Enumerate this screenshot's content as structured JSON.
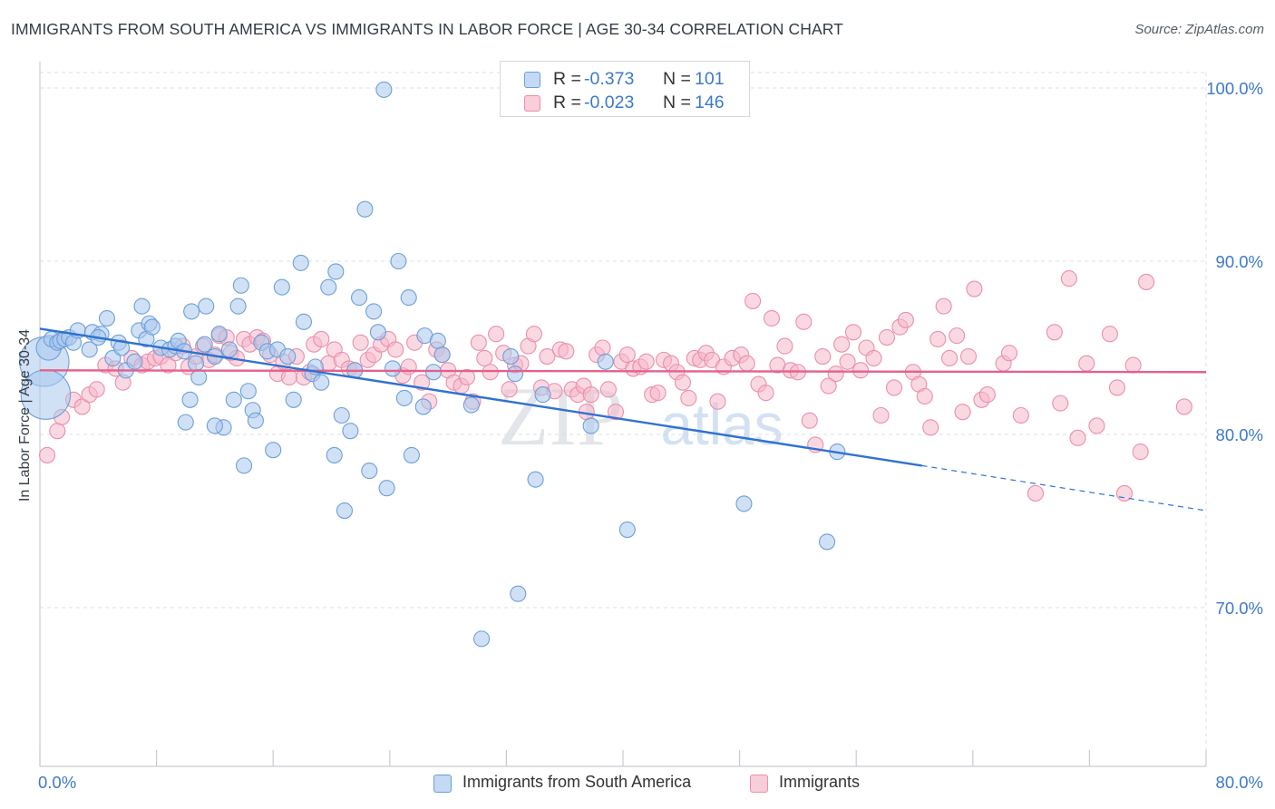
{
  "header": {
    "title": "IMMIGRANTS FROM SOUTH AMERICA VS IMMIGRANTS IN LABOR FORCE | AGE 30-34 CORRELATION CHART",
    "source": "Source: ZipAtlas.com"
  },
  "legend": {
    "items": [
      {
        "r_label": "R =",
        "r_value": "-0.373",
        "n_label": "N =",
        "n_value": "101"
      },
      {
        "r_label": "R =",
        "r_value": "-0.023",
        "n_label": "N =",
        "n_value": "146"
      }
    ]
  },
  "watermark": {
    "zip": "ZIP",
    "atlas": "atlas"
  },
  "colors": {
    "blue_fill": "#a9c8ee",
    "blue_stroke": "#6d9fd8",
    "blue_line": "#2f72d0",
    "pink_fill": "#f6b8cb",
    "pink_stroke": "#eb8fab",
    "pink_line": "#e5608b",
    "axis_text": "#3d79c9",
    "grid": "#dcdfe3"
  },
  "chart_data": {
    "type": "scatter",
    "title": "IMMIGRANTS FROM SOUTH AMERICA VS IMMIGRANTS IN LABOR FORCE | AGE 30-34 CORRELATION CHART",
    "xlabel": "",
    "ylabel": "In Labor Force | Age 30-34",
    "x_tick_labels": [
      "0.0%",
      "80.0%"
    ],
    "y_tick_labels": [
      "70.0%",
      "80.0%",
      "90.0%",
      "100.0%"
    ],
    "y_ticks": [
      70,
      80,
      90,
      100
    ],
    "xlim": [
      0,
      80
    ],
    "ylim": [
      60.5,
      102
    ],
    "grid": true,
    "legend_position": "top-center",
    "series": [
      {
        "name": "Immigrants from South America",
        "r": -0.373,
        "n": 101,
        "color": "#a9c8ee",
        "trend": {
          "x0": 0,
          "y0": 86.1,
          "x1": 60.5,
          "y1": 78.2,
          "dash_to_x": 80,
          "dash_to_y": 75.6
        },
        "points": [
          [
            0.3,
            84.2,
            3.2
          ],
          [
            0.4,
            82.3,
            3.2
          ],
          [
            0.6,
            85.0,
            1.6
          ],
          [
            0.8,
            85.5,
            1
          ],
          [
            1.2,
            85.3,
            1
          ],
          [
            1.4,
            85.4,
            1
          ],
          [
            1.7,
            85.5,
            1
          ],
          [
            2.0,
            85.6,
            1
          ],
          [
            2.3,
            85.3,
            1
          ],
          [
            2.6,
            86.0,
            1
          ],
          [
            3.4,
            84.9,
            1
          ],
          [
            3.6,
            85.9,
            1
          ],
          [
            4.2,
            85.8,
            1
          ],
          [
            4.6,
            86.7,
            1
          ],
          [
            4.0,
            85.6,
            1
          ],
          [
            5.0,
            84.4,
            1
          ],
          [
            5.4,
            85.3,
            1
          ],
          [
            5.6,
            85.0,
            1
          ],
          [
            5.9,
            83.7,
            1
          ],
          [
            6.5,
            84.2,
            1
          ],
          [
            6.8,
            86.0,
            1
          ],
          [
            7.0,
            87.4,
            1
          ],
          [
            7.3,
            85.5,
            1
          ],
          [
            7.5,
            86.4,
            1
          ],
          [
            7.7,
            86.2,
            1
          ],
          [
            8.3,
            85.0,
            1
          ],
          [
            8.9,
            84.9,
            1
          ],
          [
            9.3,
            85.1,
            1
          ],
          [
            9.5,
            85.4,
            1
          ],
          [
            9.9,
            84.8,
            1
          ],
          [
            10.0,
            80.7,
            1
          ],
          [
            10.3,
            82.0,
            1
          ],
          [
            10.4,
            87.1,
            1
          ],
          [
            10.7,
            84.1,
            1
          ],
          [
            10.9,
            83.3,
            1
          ],
          [
            11.3,
            85.2,
            1
          ],
          [
            11.4,
            87.4,
            1
          ],
          [
            12.0,
            84.5,
            1
          ],
          [
            12.3,
            85.8,
            1
          ],
          [
            12.6,
            80.4,
            1
          ],
          [
            13.0,
            84.9,
            1
          ],
          [
            13.3,
            82.0,
            1
          ],
          [
            13.6,
            87.4,
            1
          ],
          [
            13.8,
            88.6,
            1
          ],
          [
            14.3,
            82.5,
            1
          ],
          [
            14.6,
            81.4,
            1
          ],
          [
            14.8,
            80.8,
            1
          ],
          [
            15.2,
            85.3,
            1
          ],
          [
            14.0,
            78.2,
            1
          ],
          [
            15.6,
            84.8,
            1
          ],
          [
            16.3,
            84.9,
            1
          ],
          [
            16.6,
            88.5,
            1
          ],
          [
            17.0,
            84.5,
            1
          ],
          [
            17.4,
            82.0,
            1
          ],
          [
            17.9,
            89.9,
            1
          ],
          [
            18.1,
            86.5,
            1
          ],
          [
            18.7,
            83.5,
            1
          ],
          [
            18.9,
            83.9,
            1
          ],
          [
            19.3,
            83.0,
            1
          ],
          [
            19.8,
            88.5,
            1
          ],
          [
            20.3,
            89.4,
            1
          ],
          [
            20.7,
            81.1,
            1
          ],
          [
            20.9,
            75.6,
            1
          ],
          [
            21.3,
            80.2,
            1
          ],
          [
            21.6,
            83.7,
            1
          ],
          [
            21.9,
            87.9,
            1
          ],
          [
            22.3,
            93.0,
            1
          ],
          [
            22.6,
            77.9,
            1
          ],
          [
            22.9,
            87.1,
            1
          ],
          [
            23.2,
            85.9,
            1
          ],
          [
            23.6,
            99.9,
            1
          ],
          [
            24.2,
            83.8,
            1
          ],
          [
            24.6,
            90.0,
            1
          ],
          [
            25.0,
            82.1,
            1
          ],
          [
            25.3,
            87.9,
            1
          ],
          [
            25.5,
            78.8,
            1
          ],
          [
            26.3,
            81.6,
            1
          ],
          [
            26.4,
            85.7,
            1
          ],
          [
            27.0,
            83.6,
            1
          ],
          [
            27.3,
            85.4,
            1
          ],
          [
            27.6,
            84.6,
            1
          ],
          [
            29.6,
            81.7,
            1
          ],
          [
            30.3,
            68.2,
            1
          ],
          [
            32.3,
            84.5,
            1
          ],
          [
            32.6,
            83.5,
            1
          ],
          [
            32.8,
            70.8,
            1
          ],
          [
            34.0,
            77.4,
            1
          ],
          [
            34.5,
            82.3,
            1
          ],
          [
            37.8,
            80.5,
            1
          ],
          [
            38.8,
            84.2,
            1
          ],
          [
            40.3,
            74.5,
            1
          ],
          [
            48.3,
            76.0,
            1
          ],
          [
            54.0,
            73.8,
            1
          ],
          [
            54.7,
            79.0,
            1
          ],
          [
            20.2,
            78.8,
            1
          ],
          [
            12.0,
            80.5,
            1
          ],
          [
            23.8,
            76.9,
            1
          ],
          [
            16.0,
            79.1,
            1
          ]
        ]
      },
      {
        "name": "Immigrants",
        "r": -0.023,
        "n": 146,
        "color": "#f6b8cb",
        "trend": {
          "x0": 0,
          "y0": 83.7,
          "x1": 80,
          "y1": 83.6
        },
        "points": [
          [
            0.5,
            78.8
          ],
          [
            1.2,
            80.2
          ],
          [
            1.5,
            81.0
          ],
          [
            2.3,
            82.0
          ],
          [
            2.9,
            81.6
          ],
          [
            3.4,
            82.3
          ],
          [
            3.9,
            82.6
          ],
          [
            4.5,
            84.0
          ],
          [
            5.2,
            83.8
          ],
          [
            5.7,
            83.0
          ],
          [
            6.3,
            84.4
          ],
          [
            7.0,
            84.0
          ],
          [
            7.4,
            84.2
          ],
          [
            7.9,
            84.4
          ],
          [
            8.3,
            84.5
          ],
          [
            8.8,
            84.0
          ],
          [
            9.3,
            84.7
          ],
          [
            9.8,
            85.1
          ],
          [
            10.2,
            83.9
          ],
          [
            10.7,
            84.5
          ],
          [
            11.2,
            85.1
          ],
          [
            11.6,
            84.3
          ],
          [
            12.0,
            84.6
          ],
          [
            12.3,
            85.7
          ],
          [
            12.8,
            85.6
          ],
          [
            13.1,
            84.7
          ],
          [
            13.5,
            84.4
          ],
          [
            14.0,
            85.5
          ],
          [
            14.4,
            85.2
          ],
          [
            14.9,
            85.6
          ],
          [
            15.3,
            85.4
          ],
          [
            15.8,
            84.6
          ],
          [
            16.3,
            83.5
          ],
          [
            16.7,
            84.2
          ],
          [
            17.1,
            83.3
          ],
          [
            17.6,
            84.5
          ],
          [
            18.1,
            83.3
          ],
          [
            18.5,
            83.6
          ],
          [
            18.8,
            85.2
          ],
          [
            19.3,
            85.5
          ],
          [
            19.8,
            84.1
          ],
          [
            20.2,
            84.9
          ],
          [
            20.7,
            84.3
          ],
          [
            21.2,
            83.8
          ],
          [
            21.6,
            83.7
          ],
          [
            22.0,
            85.3
          ],
          [
            22.5,
            84.3
          ],
          [
            22.9,
            84.6
          ],
          [
            23.4,
            85.2
          ],
          [
            23.9,
            85.5
          ],
          [
            24.4,
            84.9
          ],
          [
            24.9,
            83.4
          ],
          [
            25.3,
            83.9
          ],
          [
            25.7,
            85.3
          ],
          [
            26.2,
            83.0
          ],
          [
            26.7,
            81.9
          ],
          [
            27.2,
            84.9
          ],
          [
            27.6,
            84.6
          ],
          [
            28.0,
            83.7
          ],
          [
            28.4,
            83.0
          ],
          [
            28.9,
            82.8
          ],
          [
            29.3,
            83.3
          ],
          [
            29.7,
            81.9
          ],
          [
            30.1,
            85.3
          ],
          [
            30.5,
            84.4
          ],
          [
            30.9,
            83.6
          ],
          [
            31.3,
            85.8
          ],
          [
            31.8,
            84.7
          ],
          [
            32.2,
            82.6
          ],
          [
            32.6,
            84.0
          ],
          [
            33.0,
            84.1
          ],
          [
            33.5,
            85.1
          ],
          [
            33.9,
            85.8
          ],
          [
            34.4,
            82.7
          ],
          [
            34.8,
            84.5
          ],
          [
            35.3,
            82.5
          ],
          [
            35.7,
            84.9
          ],
          [
            36.1,
            84.8
          ],
          [
            36.5,
            82.6
          ],
          [
            36.9,
            82.3
          ],
          [
            37.3,
            82.8
          ],
          [
            37.8,
            82.3
          ],
          [
            38.2,
            84.6
          ],
          [
            38.6,
            85.0
          ],
          [
            39.0,
            82.6
          ],
          [
            39.5,
            81.3
          ],
          [
            39.9,
            84.2
          ],
          [
            40.3,
            84.6
          ],
          [
            40.7,
            83.8
          ],
          [
            41.2,
            83.9
          ],
          [
            41.6,
            84.2
          ],
          [
            42.0,
            82.3
          ],
          [
            42.4,
            82.4
          ],
          [
            42.8,
            84.3
          ],
          [
            43.3,
            84.1
          ],
          [
            43.7,
            83.6
          ],
          [
            44.1,
            83.0
          ],
          [
            44.5,
            82.1
          ],
          [
            44.9,
            84.4
          ],
          [
            45.3,
            84.3
          ],
          [
            45.7,
            84.7
          ],
          [
            46.1,
            84.3
          ],
          [
            46.5,
            81.9
          ],
          [
            46.9,
            83.9
          ],
          [
            47.5,
            84.4
          ],
          [
            48.1,
            84.6
          ],
          [
            48.5,
            84.1
          ],
          [
            48.9,
            87.7
          ],
          [
            49.3,
            82.9
          ],
          [
            49.8,
            82.4
          ],
          [
            50.2,
            86.7
          ],
          [
            50.6,
            84.0
          ],
          [
            51.1,
            85.1
          ],
          [
            51.5,
            83.7
          ],
          [
            52.0,
            83.6
          ],
          [
            52.4,
            86.5
          ],
          [
            52.8,
            80.8
          ],
          [
            53.2,
            79.4
          ],
          [
            53.7,
            84.5
          ],
          [
            54.1,
            82.8
          ],
          [
            54.6,
            83.5
          ],
          [
            55.0,
            85.2
          ],
          [
            55.4,
            84.2
          ],
          [
            55.8,
            85.9
          ],
          [
            56.3,
            83.7
          ],
          [
            56.7,
            85.0
          ],
          [
            57.2,
            84.4
          ],
          [
            57.7,
            81.1
          ],
          [
            58.1,
            85.6
          ],
          [
            58.6,
            82.7
          ],
          [
            59.0,
            86.2
          ],
          [
            59.4,
            86.6
          ],
          [
            59.9,
            83.6
          ],
          [
            60.3,
            82.9
          ],
          [
            60.7,
            82.2
          ],
          [
            61.1,
            80.4
          ],
          [
            61.6,
            85.5
          ],
          [
            62.0,
            87.4
          ],
          [
            62.4,
            84.4
          ],
          [
            62.9,
            85.7
          ],
          [
            63.3,
            81.3
          ],
          [
            63.7,
            84.5
          ],
          [
            64.1,
            88.4
          ],
          [
            64.6,
            82.0
          ],
          [
            65.0,
            82.3
          ],
          [
            66.1,
            84.1
          ],
          [
            66.5,
            84.7
          ],
          [
            67.3,
            81.1
          ],
          [
            68.3,
            76.6
          ],
          [
            69.6,
            85.9
          ],
          [
            70.0,
            81.8
          ],
          [
            70.6,
            89.0
          ],
          [
            71.2,
            79.8
          ],
          [
            71.8,
            84.1
          ],
          [
            72.5,
            80.5
          ],
          [
            73.4,
            85.8
          ],
          [
            73.9,
            82.7
          ],
          [
            74.4,
            76.6
          ],
          [
            75.0,
            84.0
          ],
          [
            75.5,
            79.0
          ],
          [
            75.9,
            88.8
          ],
          [
            78.5,
            81.6
          ],
          [
            37.5,
            81.3
          ]
        ]
      }
    ]
  },
  "bottom_legend": {
    "items": [
      "Immigrants from South America",
      "Immigrants"
    ]
  }
}
